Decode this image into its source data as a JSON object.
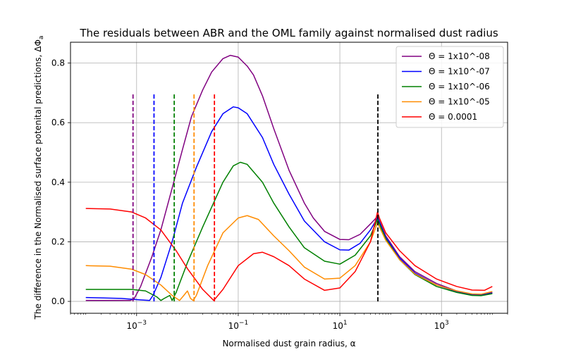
{
  "chart_data": {
    "type": "line",
    "title": "The residuals between ABR and the OML family against normalised dust radius",
    "xlabel": "Normalised dust grain radius, α",
    "ylabel": "The difference in the Normalised surface potenital predictions, ΔΦ",
    "ylabel_subscript": "a",
    "xscale": "log",
    "xlim": [
      5e-05,
      20000
    ],
    "ylim": [
      -0.04,
      0.87
    ],
    "grid": true,
    "legend_position": "upper-right",
    "x_ticks": [
      {
        "value": 0.001,
        "base": "10",
        "exp": "−3"
      },
      {
        "value": 0.1,
        "base": "10",
        "exp": "−1"
      },
      {
        "value": 10,
        "base": "10",
        "exp": "1"
      },
      {
        "value": 1000,
        "base": "10",
        "exp": "3"
      }
    ],
    "y_ticks": [
      {
        "value": 0.0,
        "label": "0.0"
      },
      {
        "value": 0.2,
        "label": "0.2"
      },
      {
        "value": 0.4,
        "label": "0.4"
      },
      {
        "value": 0.6,
        "label": "0.6"
      },
      {
        "value": 0.8,
        "label": "0.8"
      }
    ],
    "series": [
      {
        "name": "Θ = 1x10^-08",
        "color": "#800080",
        "points": [
          [
            0.0001,
            0.003
          ],
          [
            0.0003,
            0.003
          ],
          [
            0.00075,
            0.003
          ],
          [
            0.0009,
            0.01
          ],
          [
            0.0012,
            0.05
          ],
          [
            0.002,
            0.15
          ],
          [
            0.003,
            0.24
          ],
          [
            0.005,
            0.38
          ],
          [
            0.008,
            0.51
          ],
          [
            0.012,
            0.62
          ],
          [
            0.02,
            0.71
          ],
          [
            0.03,
            0.77
          ],
          [
            0.05,
            0.815
          ],
          [
            0.07,
            0.826
          ],
          [
            0.1,
            0.82
          ],
          [
            0.15,
            0.79
          ],
          [
            0.2,
            0.76
          ],
          [
            0.3,
            0.69
          ],
          [
            0.5,
            0.58
          ],
          [
            1,
            0.44
          ],
          [
            2,
            0.33
          ],
          [
            3,
            0.28
          ],
          [
            5,
            0.235
          ],
          [
            10,
            0.208
          ],
          [
            15,
            0.207
          ],
          [
            25,
            0.225
          ],
          [
            40,
            0.26
          ],
          [
            55,
            0.285
          ],
          [
            60,
            0.27
          ],
          [
            80,
            0.22
          ],
          [
            150,
            0.15
          ],
          [
            300,
            0.1
          ],
          [
            800,
            0.06
          ],
          [
            2000,
            0.035
          ],
          [
            4000,
            0.024
          ],
          [
            6000,
            0.023
          ],
          [
            10000,
            0.03
          ]
        ]
      },
      {
        "name": "Θ = 1x10^-07",
        "color": "#0000ff",
        "points": [
          [
            0.0001,
            0.013
          ],
          [
            0.0005,
            0.01
          ],
          [
            0.0012,
            0.005
          ],
          [
            0.0018,
            0.003
          ],
          [
            0.0021,
            0.02
          ],
          [
            0.003,
            0.08
          ],
          [
            0.005,
            0.2
          ],
          [
            0.008,
            0.33
          ],
          [
            0.015,
            0.45
          ],
          [
            0.03,
            0.57
          ],
          [
            0.05,
            0.63
          ],
          [
            0.08,
            0.653
          ],
          [
            0.1,
            0.65
          ],
          [
            0.15,
            0.63
          ],
          [
            0.3,
            0.55
          ],
          [
            0.5,
            0.46
          ],
          [
            1,
            0.36
          ],
          [
            2,
            0.27
          ],
          [
            5,
            0.2
          ],
          [
            10,
            0.173
          ],
          [
            15,
            0.172
          ],
          [
            25,
            0.195
          ],
          [
            40,
            0.24
          ],
          [
            55,
            0.28
          ],
          [
            60,
            0.265
          ],
          [
            80,
            0.215
          ],
          [
            150,
            0.145
          ],
          [
            300,
            0.095
          ],
          [
            800,
            0.055
          ],
          [
            2000,
            0.033
          ],
          [
            4000,
            0.022
          ],
          [
            6000,
            0.021
          ],
          [
            10000,
            0.028
          ]
        ]
      },
      {
        "name": "Θ = 1x10^-06",
        "color": "#008000",
        "points": [
          [
            0.0001,
            0.04
          ],
          [
            0.0008,
            0.04
          ],
          [
            0.0015,
            0.035
          ],
          [
            0.0025,
            0.015
          ],
          [
            0.003,
            0.003
          ],
          [
            0.0035,
            0.01
          ],
          [
            0.0045,
            0.02
          ],
          [
            0.005,
            0.003
          ],
          [
            0.006,
            0.03
          ],
          [
            0.01,
            0.13
          ],
          [
            0.02,
            0.25
          ],
          [
            0.05,
            0.4
          ],
          [
            0.08,
            0.455
          ],
          [
            0.11,
            0.467
          ],
          [
            0.15,
            0.46
          ],
          [
            0.3,
            0.4
          ],
          [
            0.5,
            0.33
          ],
          [
            1,
            0.25
          ],
          [
            2,
            0.18
          ],
          [
            5,
            0.135
          ],
          [
            10,
            0.125
          ],
          [
            20,
            0.155
          ],
          [
            40,
            0.22
          ],
          [
            55,
            0.275
          ],
          [
            60,
            0.26
          ],
          [
            80,
            0.21
          ],
          [
            150,
            0.14
          ],
          [
            300,
            0.09
          ],
          [
            800,
            0.05
          ],
          [
            2000,
            0.03
          ],
          [
            4000,
            0.02
          ],
          [
            6000,
            0.019
          ],
          [
            10000,
            0.026
          ]
        ]
      },
      {
        "name": "Θ = 1x10^-05",
        "color": "#ff8c00",
        "points": [
          [
            0.0001,
            0.12
          ],
          [
            0.0003,
            0.118
          ],
          [
            0.0008,
            0.108
          ],
          [
            0.0015,
            0.09
          ],
          [
            0.003,
            0.055
          ],
          [
            0.005,
            0.02
          ],
          [
            0.007,
            0.003
          ],
          [
            0.0085,
            0.02
          ],
          [
            0.01,
            0.035
          ],
          [
            0.0115,
            0.01
          ],
          [
            0.013,
            0.003
          ],
          [
            0.015,
            0.02
          ],
          [
            0.025,
            0.12
          ],
          [
            0.05,
            0.23
          ],
          [
            0.1,
            0.28
          ],
          [
            0.15,
            0.288
          ],
          [
            0.25,
            0.275
          ],
          [
            0.5,
            0.22
          ],
          [
            1,
            0.17
          ],
          [
            2,
            0.115
          ],
          [
            5,
            0.075
          ],
          [
            10,
            0.078
          ],
          [
            20,
            0.12
          ],
          [
            40,
            0.2
          ],
          [
            55,
            0.265
          ],
          [
            60,
            0.25
          ],
          [
            80,
            0.205
          ],
          [
            150,
            0.14
          ],
          [
            300,
            0.092
          ],
          [
            800,
            0.055
          ],
          [
            2000,
            0.035
          ],
          [
            4000,
            0.025
          ],
          [
            6000,
            0.024
          ],
          [
            10000,
            0.033
          ]
        ]
      },
      {
        "name": "Θ = 0.0001",
        "color": "#ff0000",
        "points": [
          [
            0.0001,
            0.312
          ],
          [
            0.0003,
            0.31
          ],
          [
            0.0008,
            0.3
          ],
          [
            0.0015,
            0.28
          ],
          [
            0.003,
            0.24
          ],
          [
            0.006,
            0.17
          ],
          [
            0.01,
            0.11
          ],
          [
            0.02,
            0.04
          ],
          [
            0.033,
            0.003
          ],
          [
            0.05,
            0.04
          ],
          [
            0.1,
            0.12
          ],
          [
            0.2,
            0.16
          ],
          [
            0.3,
            0.165
          ],
          [
            0.5,
            0.15
          ],
          [
            1,
            0.12
          ],
          [
            2,
            0.075
          ],
          [
            5,
            0.037
          ],
          [
            10,
            0.045
          ],
          [
            20,
            0.1
          ],
          [
            40,
            0.2
          ],
          [
            55,
            0.3
          ],
          [
            60,
            0.28
          ],
          [
            80,
            0.23
          ],
          [
            150,
            0.17
          ],
          [
            300,
            0.12
          ],
          [
            800,
            0.075
          ],
          [
            2000,
            0.05
          ],
          [
            4000,
            0.038
          ],
          [
            7000,
            0.037
          ],
          [
            10000,
            0.05
          ]
        ]
      }
    ],
    "vlines": [
      {
        "x": 0.00085,
        "color": "#800080",
        "y0": 0,
        "y1": 0.7
      },
      {
        "x": 0.0022,
        "color": "#0000ff",
        "y0": 0,
        "y1": 0.7
      },
      {
        "x": 0.0055,
        "color": "#008000",
        "y0": 0,
        "y1": 0.7
      },
      {
        "x": 0.0135,
        "color": "#ff8c00",
        "y0": 0,
        "y1": 0.7
      },
      {
        "x": 0.034,
        "color": "#ff0000",
        "y0": 0,
        "y1": 0.7
      },
      {
        "x": 56,
        "color": "#000000",
        "y0": 0,
        "y1": 0.7
      }
    ]
  }
}
